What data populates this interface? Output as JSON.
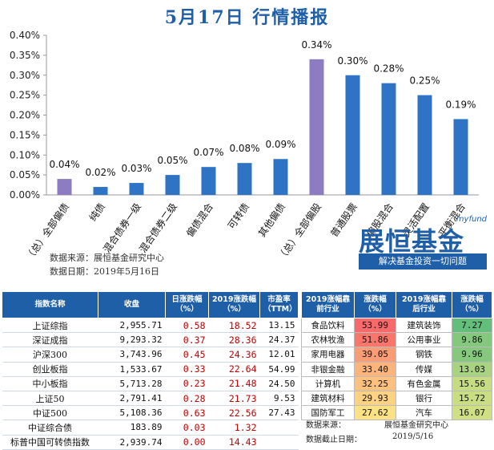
{
  "page": {
    "title": "5月17日  行情播报"
  },
  "chart_data": {
    "type": "bar",
    "categories": [
      "（总）全部偏债",
      "纯债",
      "混合债券一级",
      "混合债券二级",
      "偏债混合",
      "可转债",
      "其他偏债",
      "（总）全部偏股",
      "普通股票",
      "偏股混合",
      "灵活配置",
      "平衡混合"
    ],
    "values": [
      0.04,
      0.02,
      0.03,
      0.05,
      0.07,
      0.08,
      0.09,
      0.34,
      0.3,
      0.28,
      0.25,
      0.19
    ],
    "data_labels": [
      "0.04%",
      "0.02%",
      "0.03%",
      "0.05%",
      "0.07%",
      "0.08%",
      "0.09%",
      "0.34%",
      "0.30%",
      "0.28%",
      "0.25%",
      "0.19%"
    ],
    "bar_colors": [
      "#8e7cc3",
      "#2f73c4",
      "#2f73c4",
      "#2f73c4",
      "#2f73c4",
      "#2f73c4",
      "#2f73c4",
      "#8e7cc3",
      "#2f73c4",
      "#2f73c4",
      "#2f73c4",
      "#2f73c4"
    ],
    "ylim": [
      0,
      0.4
    ],
    "yticks": [
      "0.00%",
      "0.05%",
      "0.10%",
      "0.15%",
      "0.20%",
      "0.25%",
      "0.30%",
      "0.35%",
      "0.40%"
    ],
    "grid": false
  },
  "source_note": {
    "line1": "数据来源：展恒基金研究中心",
    "line2": "数据日期：2019年5月16日"
  },
  "brand": {
    "tag": "myfund",
    "name": "展恒基金",
    "slogan": "解决基金投资一切问题"
  },
  "index_table": {
    "headers": [
      "指数名称",
      "收盘",
      "日涨跌幅（%）",
      "2019涨跌幅（%）",
      "市盈率（TTM）"
    ],
    "rows": [
      [
        "上证综指",
        "2,955.71",
        "0.58",
        "18.52",
        "13.15"
      ],
      [
        "深证成指",
        "9,293.32",
        "0.37",
        "28.36",
        "24.37"
      ],
      [
        "沪深300",
        "3,743.96",
        "0.45",
        "24.36",
        "12.01"
      ],
      [
        "创业板指",
        "1,533.67",
        "0.33",
        "22.64",
        "54.99"
      ],
      [
        "中小板指",
        "5,713.28",
        "0.23",
        "21.48",
        "24.50"
      ],
      [
        "上证50",
        "2,791.41",
        "0.28",
        "21.73",
        "9.53"
      ],
      [
        "中证500",
        "5,108.36",
        "0.63",
        "22.56",
        "27.43"
      ],
      [
        "中证综合债",
        "183.89",
        "0.03",
        "1.32",
        ""
      ],
      [
        "标普中国可转债指数",
        "2,939.74",
        "0.00",
        "14.43",
        ""
      ]
    ]
  },
  "industry_table": {
    "headers": [
      "2019涨幅靠前行业",
      "涨跌幅（%）",
      "2019涨幅靠后行业",
      "涨跌幅（%）"
    ],
    "rows": [
      [
        "食品饮料",
        "53.99",
        "建筑装饰",
        "7.27"
      ],
      [
        "农林牧渔",
        "51.86",
        "公用事业",
        "9.86"
      ],
      [
        "家用电器",
        "39.05",
        "钢铁",
        "9.96"
      ],
      [
        "非银金融",
        "33.40",
        "传媒",
        "13.03"
      ],
      [
        "计算机",
        "32.25",
        "有色金属",
        "15.56"
      ],
      [
        "建筑材料",
        "29.93",
        "银行",
        "15.72"
      ],
      [
        "国防军工",
        "27.62",
        "汽车",
        "16.07"
      ]
    ],
    "top_colors": [
      "#f8696b",
      "#f8766c",
      "#fa9c76",
      "#fbb57c",
      "#fcc17f",
      "#fdd383",
      "#fde285"
    ],
    "bottom_colors": [
      "#63be7b",
      "#84c87e",
      "#86c97e",
      "#a8d380",
      "#c5dc82",
      "#c9dd82",
      "#cee083"
    ]
  },
  "footer": {
    "source": "数据来源：",
    "source_value": "展恒基金研究中心",
    "date": "数据截止日期：",
    "date_value": "2019/5/16"
  }
}
